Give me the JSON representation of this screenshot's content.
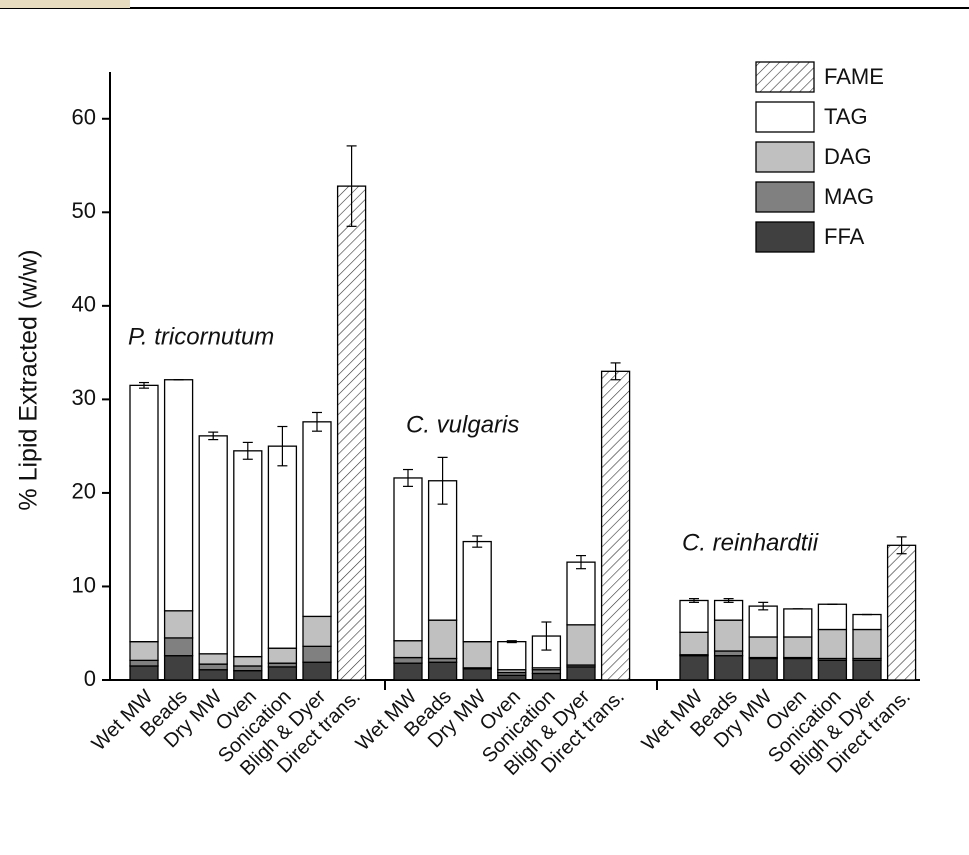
{
  "chart_data": {
    "type": "stacked-bar",
    "ylabel": "% Lipid Extracted (w/w)",
    "categories": [
      "Wet MW",
      "Beads",
      "Dry MW",
      "Oven",
      "Sonication",
      "Bligh & Dyer",
      "Direct trans.",
      "Wet MW",
      "Beads",
      "Dry MW",
      "Oven",
      "Sonication",
      "Bligh & Dyer",
      "Direct trans.",
      "Wet MW",
      "Beads",
      "Dry MW",
      "Oven",
      "Sonication",
      "Bligh & Dyer",
      "Direct trans."
    ],
    "groups": [
      "P. tricornutum",
      "C. vulgaris",
      "C. reinhardtii"
    ],
    "series": [
      {
        "name": "FFA",
        "color": "#404040",
        "values": [
          1.5,
          2.6,
          1.1,
          1.0,
          1.4,
          1.9,
          null,
          1.8,
          1.9,
          1.2,
          0.5,
          0.7,
          1.4,
          null,
          2.6,
          2.6,
          2.3,
          2.3,
          2.1,
          2.1,
          null
        ]
      },
      {
        "name": "MAG",
        "color": "#808080",
        "values": [
          0.6,
          1.9,
          0.6,
          0.5,
          0.4,
          1.7,
          null,
          0.6,
          0.4,
          0.1,
          0.3,
          0.4,
          0.2,
          null,
          0.1,
          0.5,
          0.1,
          0.1,
          0.2,
          0.2,
          null
        ]
      },
      {
        "name": "DAG",
        "color": "#c0c0c0",
        "values": [
          2.0,
          2.9,
          1.1,
          1.0,
          1.6,
          3.2,
          null,
          1.8,
          4.1,
          2.8,
          0.3,
          0.2,
          4.3,
          null,
          2.4,
          3.3,
          2.2,
          2.2,
          3.1,
          3.1,
          null
        ]
      },
      {
        "name": "TAG",
        "color": "#ffffff",
        "values": [
          27.4,
          24.7,
          23.3,
          22.0,
          21.6,
          20.8,
          null,
          17.4,
          14.9,
          10.7,
          3.0,
          3.4,
          6.7,
          null,
          3.4,
          2.1,
          3.3,
          3.0,
          2.7,
          1.6,
          null
        ]
      },
      {
        "name": "FAME",
        "color": "#ffffff",
        "hatch": true,
        "values": [
          null,
          null,
          null,
          null,
          null,
          null,
          52.8,
          null,
          null,
          null,
          null,
          null,
          null,
          33.0,
          null,
          null,
          null,
          null,
          null,
          null,
          14.4
        ]
      }
    ],
    "errors": [
      0.3,
      0,
      0.4,
      0.9,
      2.1,
      1.0,
      4.3,
      0.9,
      2.5,
      0.6,
      0.1,
      1.5,
      0.7,
      0.9,
      0.2,
      0.2,
      0.4,
      0,
      0,
      0,
      0.9
    ],
    "ylim": [
      0,
      65
    ],
    "yticks": [
      0,
      10,
      20,
      30,
      40,
      50,
      60
    ],
    "legend": "top-right"
  }
}
